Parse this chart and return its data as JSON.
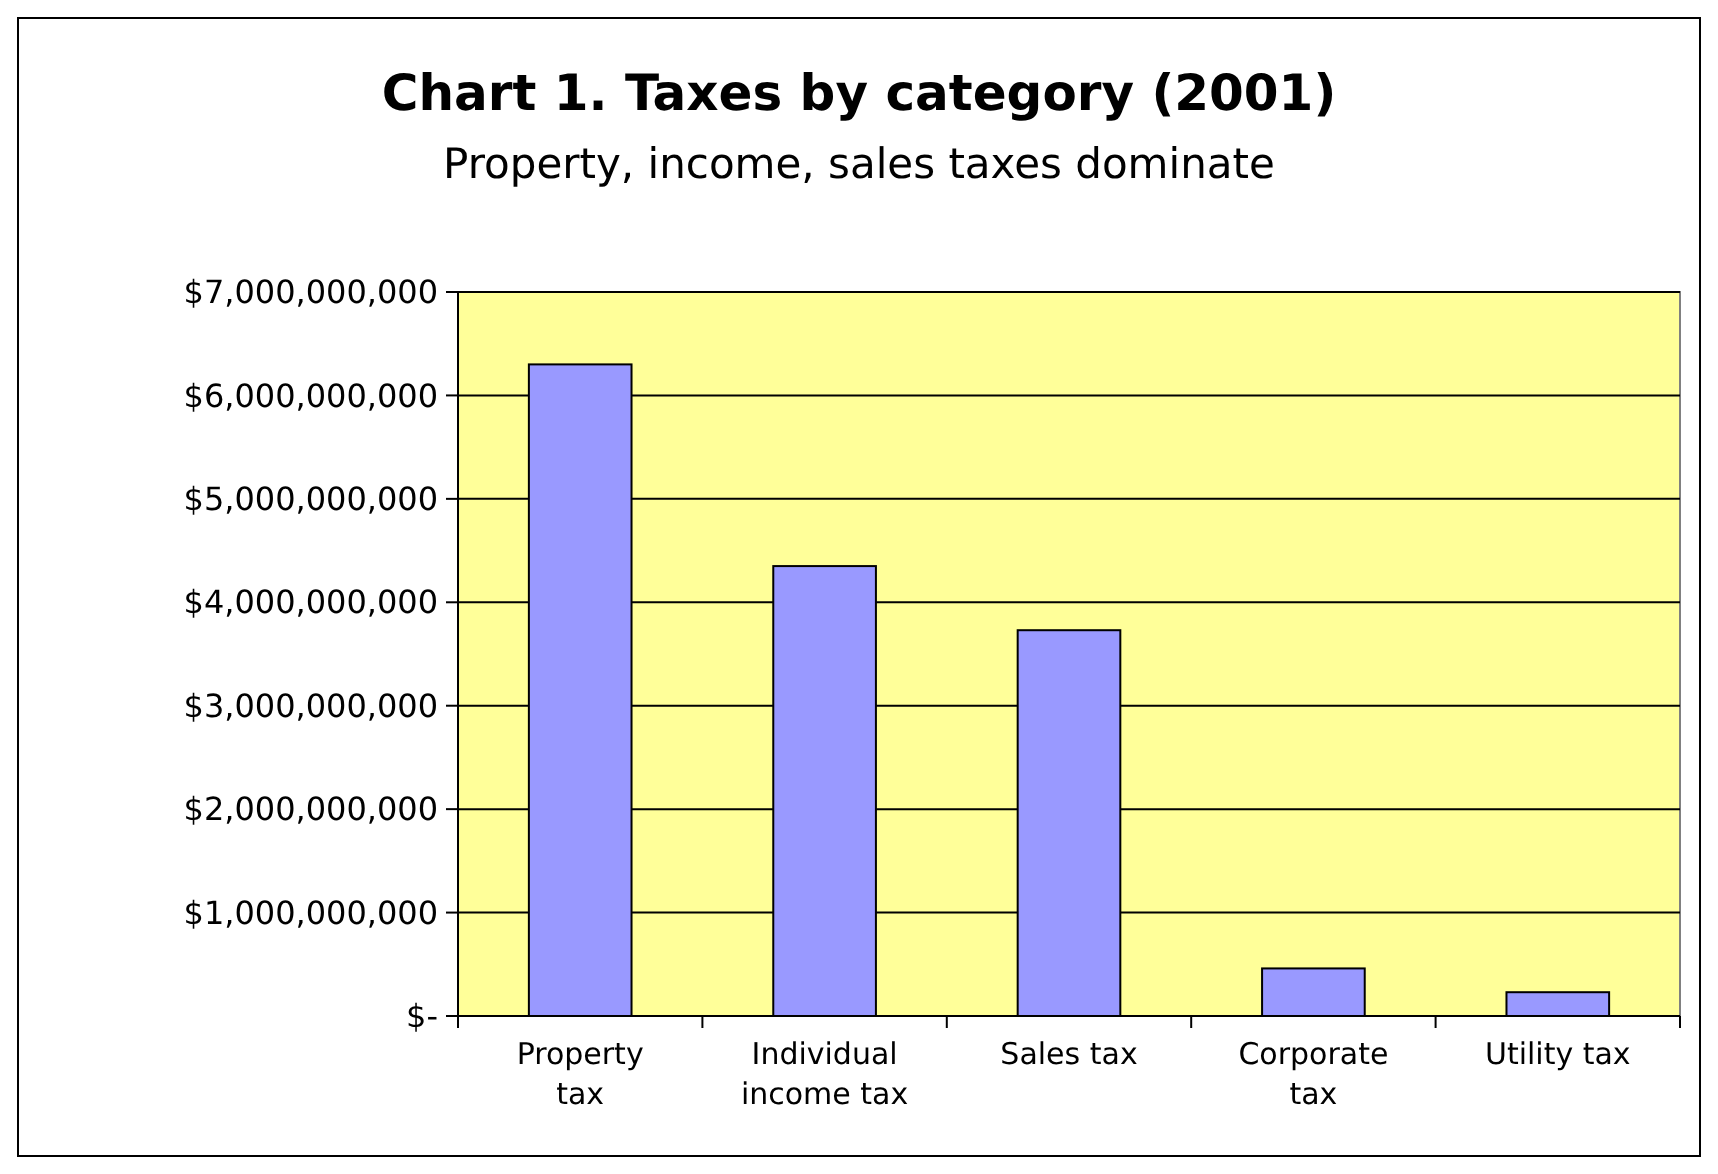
{
  "chart_data": {
    "type": "bar",
    "title": "Chart 1. Taxes by category (2001)",
    "subtitle": "Property, income, sales taxes dominate",
    "categories": [
      "Property tax",
      "Individual income tax",
      "Sales tax",
      "Corporate tax",
      "Utility tax"
    ],
    "values": [
      6300000000,
      4350000000,
      3730000000,
      460000000,
      230000000
    ],
    "color": "#9999ff",
    "ylim": [
      0,
      7000000000
    ],
    "yticks": [
      {
        "value": 0,
        "label": "$-"
      },
      {
        "value": 1000000000,
        "label": "$1,000,000,000"
      },
      {
        "value": 2000000000,
        "label": "$2,000,000,000"
      },
      {
        "value": 3000000000,
        "label": "$3,000,000,000"
      },
      {
        "value": 4000000000,
        "label": "$4,000,000,000"
      },
      {
        "value": 5000000000,
        "label": "$5,000,000,000"
      },
      {
        "value": 6000000000,
        "label": "$6,000,000,000"
      },
      {
        "value": 7000000000,
        "label": "$7,000,000,000"
      }
    ],
    "grid": "y"
  }
}
